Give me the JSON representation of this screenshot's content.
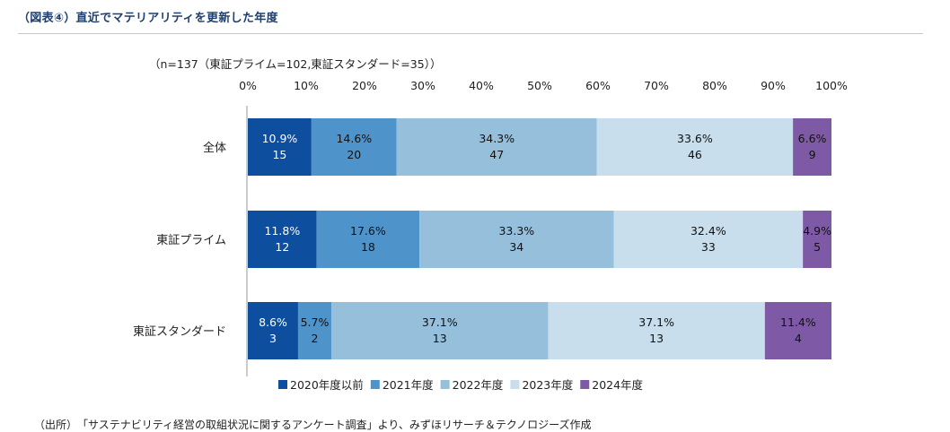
{
  "figure_title": "（図表④）直近でマテリアリティを更新した年度",
  "source_note": "（出所）　「サステナビリティ経営の取組状況に関するアンケート調査」より、みずほリサーチ＆テクノロジーズ作成",
  "chart_data": {
    "type": "bar",
    "orientation": "horizontal-stacked-100",
    "note": "（n=137（東証プライム=102,東証スタンダード=35））",
    "xlim": [
      0,
      100
    ],
    "x_ticks": [
      "0%",
      "10%",
      "20%",
      "30%",
      "40%",
      "50%",
      "60%",
      "70%",
      "80%",
      "90%",
      "100%"
    ],
    "categories": [
      "全体",
      "東証プライム",
      "東証スタンダード"
    ],
    "series": [
      {
        "name": "2020年度以前",
        "color": "#0d4e9e",
        "text_color": "#ffffff",
        "percent": [
          10.9,
          11.8,
          8.6
        ],
        "counts": [
          15,
          12,
          3
        ],
        "percent_labels": [
          "10.9%",
          "11.8%",
          "8.6%"
        ],
        "count_labels": [
          "15",
          "12",
          "3"
        ]
      },
      {
        "name": "2021年度",
        "color": "#4f93cb",
        "text_color": "#111111",
        "percent": [
          14.6,
          17.6,
          5.7
        ],
        "counts": [
          20,
          18,
          2
        ],
        "percent_labels": [
          "14.6%",
          "17.6%",
          "5.7%"
        ],
        "count_labels": [
          "20",
          "18",
          "2"
        ]
      },
      {
        "name": "2022年度",
        "color": "#96bfdb",
        "text_color": "#111111",
        "percent": [
          34.3,
          33.3,
          37.1
        ],
        "counts": [
          47,
          34,
          13
        ],
        "percent_labels": [
          "34.3%",
          "33.3%",
          "37.1%"
        ],
        "count_labels": [
          "47",
          "34",
          "13"
        ]
      },
      {
        "name": "2023年度",
        "color": "#c9deed",
        "text_color": "#111111",
        "percent": [
          33.6,
          32.4,
          37.1
        ],
        "counts": [
          46,
          33,
          13
        ],
        "percent_labels": [
          "33.6%",
          "32.4%",
          "37.1%"
        ],
        "count_labels": [
          "46",
          "33",
          "13"
        ]
      },
      {
        "name": "2024年度",
        "color": "#7e5aa6",
        "text_color": "#111111",
        "percent": [
          6.6,
          4.9,
          11.4
        ],
        "counts": [
          9,
          5,
          4
        ],
        "percent_labels": [
          "6.6%",
          "4.9%",
          "11.4%"
        ],
        "count_labels": [
          "9",
          "5",
          "4"
        ]
      }
    ],
    "legend_position": "bottom"
  }
}
